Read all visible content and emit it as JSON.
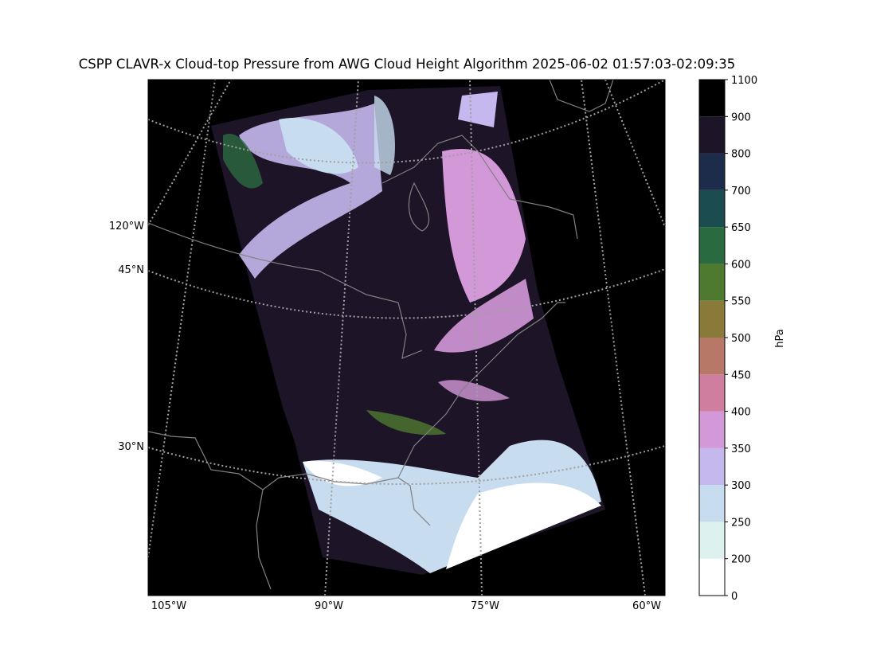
{
  "title": "CSPP CLAVR-x Cloud-top Pressure from AWG Cloud Height Algorithm 2025-06-02 01:57:03-02:09:35",
  "map": {
    "lon_labels": [
      "105°W",
      "90°W",
      "75°W",
      "60°W"
    ],
    "lat_labels": [
      "120°W",
      "45°N",
      "30°N"
    ]
  },
  "colorbar": {
    "label": "hPa",
    "boundaries": [
      0,
      200,
      250,
      300,
      350,
      400,
      450,
      500,
      550,
      600,
      650,
      700,
      800,
      900,
      1100
    ],
    "colors": [
      "#ffffff",
      "#ddf2ee",
      "#c8dcf0",
      "#c4b8ee",
      "#d398d8",
      "#d07ea0",
      "#b87868",
      "#8a7a3a",
      "#4e7a30",
      "#2a6a40",
      "#1a4c50",
      "#1e2c4c",
      "#1e1428",
      "#000000"
    ]
  }
}
